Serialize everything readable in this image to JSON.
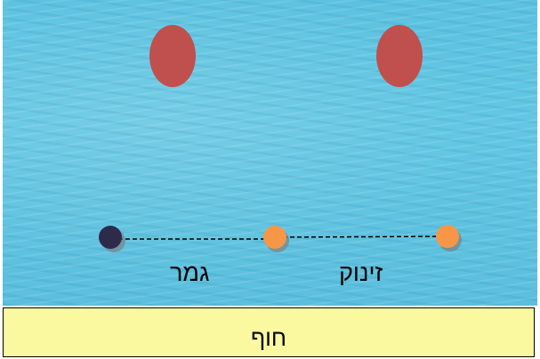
{
  "labels": {
    "finish": "גמר",
    "start": "זינוק",
    "shore": "חוף"
  },
  "colors": {
    "water": "#5cc2e0",
    "shore": "#fbf9a0",
    "buoy_red": "#c0504d",
    "buoy_orange": "#f79646",
    "buoy_dark": "#2e2a4a"
  }
}
